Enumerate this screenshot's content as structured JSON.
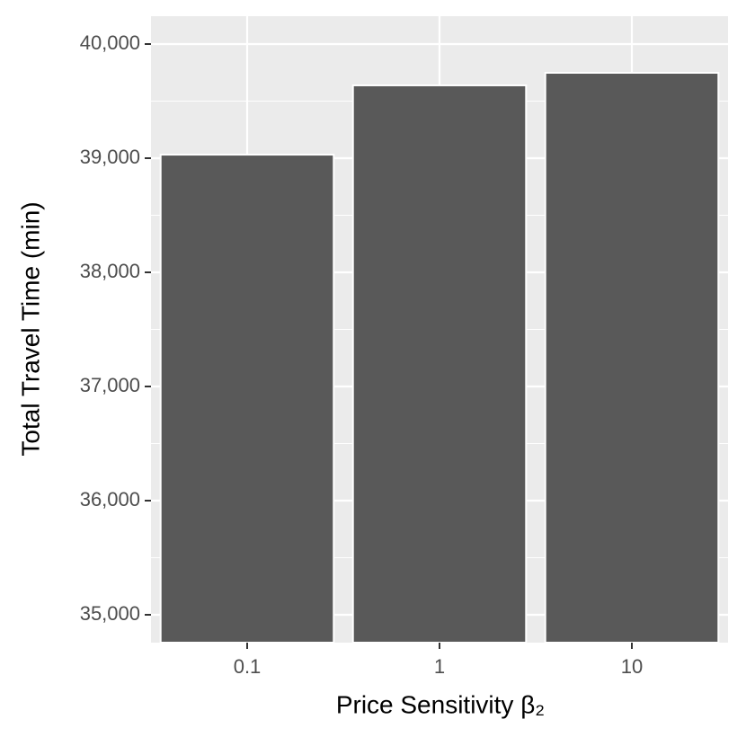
{
  "chart_data": {
    "type": "bar",
    "x_label": "Price Sensitivity β₂",
    "y_label": "Total Travel Time (min)",
    "categories": [
      "0.1",
      "1",
      "10"
    ],
    "values": [
      39031,
      39638,
      39748
    ],
    "color": "#595959",
    "ylim": [
      34756,
      40244
    ],
    "yticks": [
      {
        "value": 35000,
        "label": "35,000"
      },
      {
        "value": 36000,
        "label": "36,000"
      },
      {
        "value": 37000,
        "label": "37,000"
      },
      {
        "value": 38000,
        "label": "38,000"
      },
      {
        "value": 39000,
        "label": "39,000"
      },
      {
        "value": 40000,
        "label": "40,000"
      }
    ],
    "grid": true
  }
}
